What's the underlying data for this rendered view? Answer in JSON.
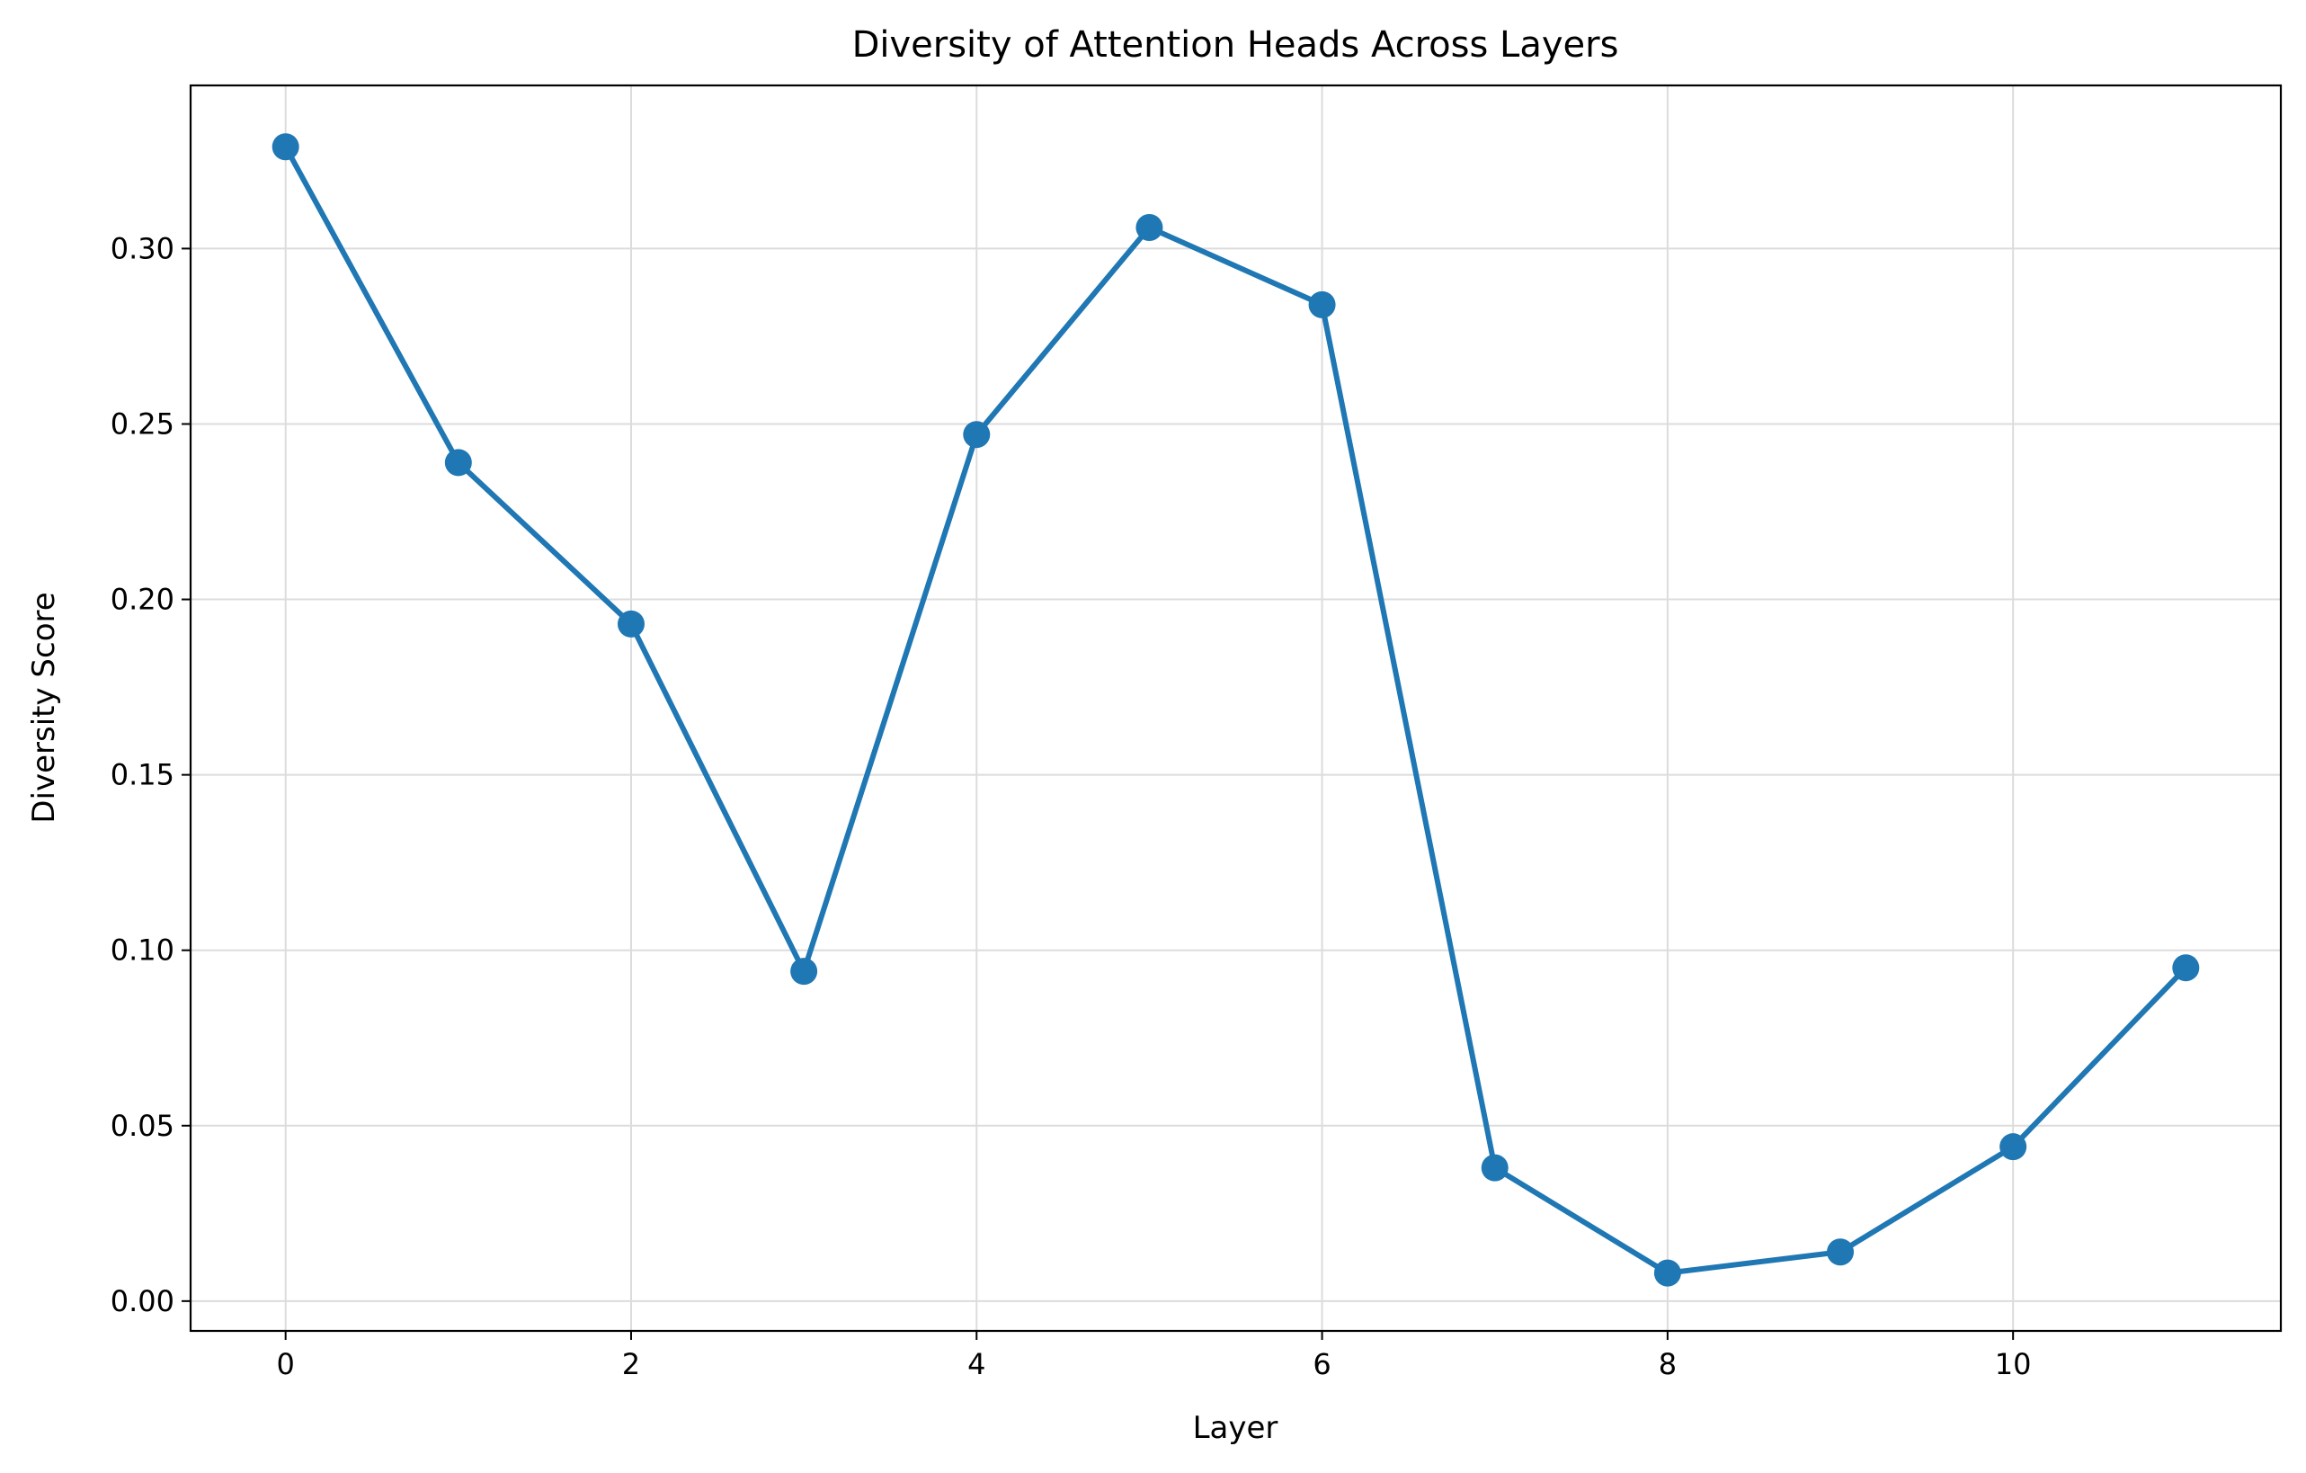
{
  "chart_data": {
    "type": "line",
    "title": "Diversity of Attention Heads Across Layers",
    "xlabel": "Layer",
    "ylabel": "Diversity Score",
    "xlim": [
      -0.55,
      11.55
    ],
    "ylim": [
      -0.0085,
      0.3465
    ],
    "xticks": [
      0,
      2,
      4,
      6,
      8,
      10
    ],
    "yticks": [
      0.0,
      0.05,
      0.1,
      0.15,
      0.2,
      0.25,
      0.3
    ],
    "xtick_labels": [
      "0",
      "2",
      "4",
      "6",
      "8",
      "10"
    ],
    "ytick_labels": [
      "0.00",
      "0.05",
      "0.10",
      "0.15",
      "0.20",
      "0.25",
      "0.30"
    ],
    "grid": true,
    "legend": "none",
    "series": [
      {
        "x": [
          0,
          1,
          2,
          3,
          4,
          5,
          6,
          7,
          8,
          9,
          10,
          11
        ],
        "values": [
          0.329,
          0.239,
          0.193,
          0.094,
          0.247,
          0.306,
          0.284,
          0.038,
          0.008,
          0.014,
          0.044,
          0.095
        ],
        "color": "#1f77b4",
        "marker": "circle"
      }
    ]
  }
}
